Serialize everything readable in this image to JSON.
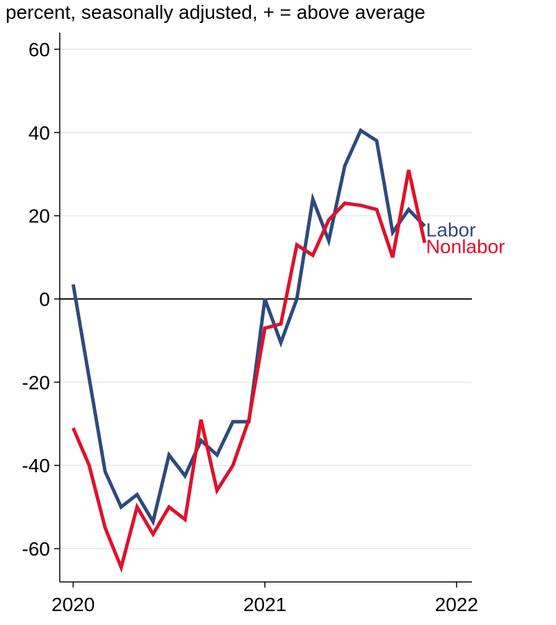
{
  "chart_data": {
    "type": "line",
    "title": "percent, seasonally adjusted, + = above average",
    "xlabel": "",
    "ylabel": "",
    "ylim": [
      -68,
      64
    ],
    "xlim": [
      2019.93,
      2022.08
    ],
    "y_ticks": [
      "60",
      "40",
      "20",
      "0",
      "-20",
      "-40",
      "-60"
    ],
    "y_tick_values": [
      60,
      40,
      20,
      0,
      -20,
      -40,
      -60
    ],
    "x_ticks": [
      "2020",
      "2021",
      "2022"
    ],
    "x_tick_values": [
      2020,
      2021,
      2022
    ],
    "grid": "horizontal",
    "zero_line": true,
    "x": [
      2020.0,
      2020.0833,
      2020.1667,
      2020.25,
      2020.3333,
      2020.4167,
      2020.5,
      2020.5833,
      2020.6667,
      2020.75,
      2020.8333,
      2020.9167,
      2021.0,
      2021.0833,
      2021.1667,
      2021.25,
      2021.3333,
      2021.4167,
      2021.5,
      2021.5833,
      2021.6667,
      2021.75,
      2021.8333
    ],
    "series": [
      {
        "name": "Labor",
        "color": "#2e4a7d",
        "values": [
          3.5,
          -19,
          -41.5,
          -50,
          -47,
          -53.5,
          -37.5,
          -42.5,
          -34,
          -37.5,
          -29.5,
          -29.5,
          0,
          -10.5,
          0,
          24,
          14,
          32,
          40.5,
          38,
          16,
          21.5,
          17.5
        ]
      },
      {
        "name": "Nonlabor",
        "color": "#e0112b",
        "values": [
          -31,
          -40,
          -55,
          -64.5,
          -50,
          -56.5,
          -50,
          -53,
          -29,
          -46,
          -40,
          -29,
          -7,
          -6,
          13,
          10.5,
          19,
          23,
          22.5,
          21.5,
          10,
          31,
          13.5
        ]
      }
    ]
  }
}
